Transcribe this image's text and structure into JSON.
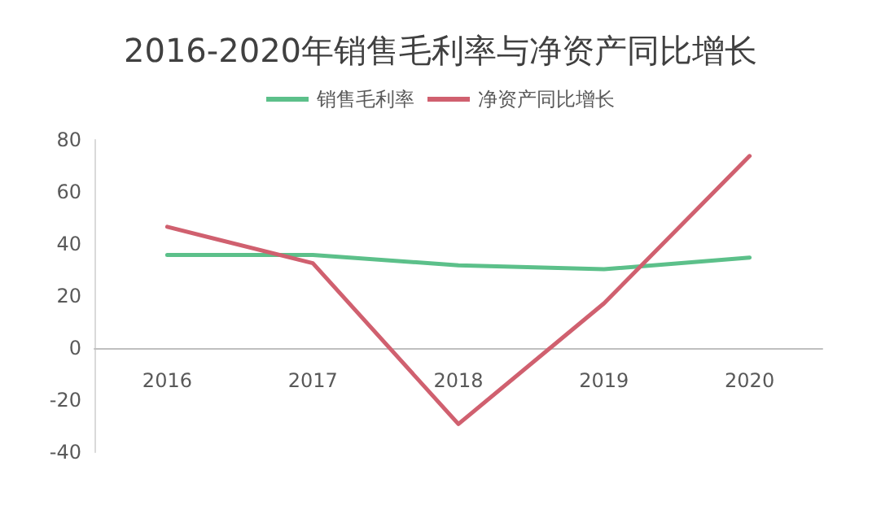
{
  "chart_data": {
    "type": "line",
    "title": "2016-2020年销售毛利率与净资产同比增长",
    "categories": [
      "2016",
      "2017",
      "2018",
      "2019",
      "2020"
    ],
    "series": [
      {
        "name": "销售毛利率",
        "color": "#5cc08a",
        "values": [
          35.8,
          35.8,
          31.8,
          30.3,
          34.8
        ]
      },
      {
        "name": "净资产同比增长",
        "color": "#d0606f",
        "values": [
          46.6,
          32.6,
          -29.2,
          17.2,
          73.8
        ]
      }
    ],
    "ylim": [
      -40,
      80
    ],
    "yticks": [
      -40,
      -20,
      0,
      20,
      40,
      60,
      80
    ],
    "legend": "top",
    "marker": "none",
    "line_style": "solid"
  }
}
